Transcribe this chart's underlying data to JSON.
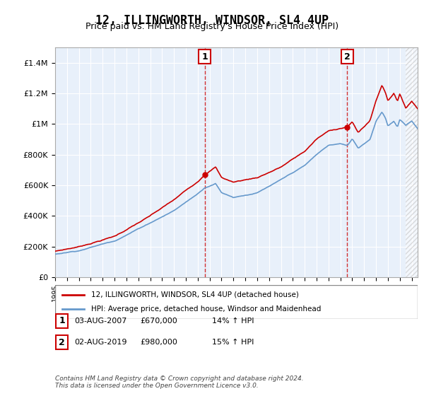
{
  "title": "12, ILLINGWORTH, WINDSOR, SL4 4UP",
  "subtitle": "Price paid vs. HM Land Registry's House Price Index (HPI)",
  "ylim": [
    0,
    1500000
  ],
  "yticks": [
    0,
    200000,
    400000,
    600000,
    800000,
    1000000,
    1200000,
    1400000
  ],
  "ytick_labels": [
    "£0",
    "£200K",
    "£400K",
    "£600K",
    "£800K",
    "£1M",
    "£1.2M",
    "£1.4M"
  ],
  "xlim_start": 1995.0,
  "xlim_end": 2025.5,
  "bg_color": "#ddeeff",
  "plot_bg": "#e8f0fa",
  "grid_color": "#ffffff",
  "sale1_date": 2007.58,
  "sale1_price": 670000,
  "sale2_date": 2019.58,
  "sale2_price": 980000,
  "legend_line1": "12, ILLINGWORTH, WINDSOR, SL4 4UP (detached house)",
  "legend_line2": "HPI: Average price, detached house, Windsor and Maidenhead",
  "table_row1": [
    "1",
    "03-AUG-2007",
    "£670,000",
    "14% ↑ HPI"
  ],
  "table_row2": [
    "2",
    "02-AUG-2019",
    "£980,000",
    "15% ↑ HPI"
  ],
  "footer": "Contains HM Land Registry data © Crown copyright and database right 2024.\nThis data is licensed under the Open Government Licence v3.0.",
  "line_red": "#cc0000",
  "line_blue": "#6699cc",
  "hatch_color": "#cccccc"
}
